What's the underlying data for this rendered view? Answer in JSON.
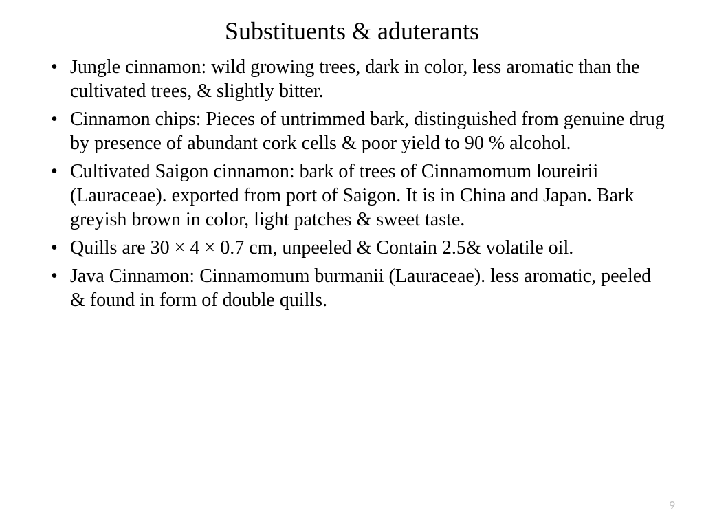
{
  "slide": {
    "title": "Substituents & aduterants",
    "bullets": [
      "Jungle cinnamon: wild growing trees, dark in color, less aromatic than the cultivated trees, & slightly bitter.",
      "Cinnamon chips: Pieces of untrimmed bark, distinguished from genuine  drug by presence of abundant cork cells & poor yield to 90 % alcohol.",
      "Cultivated Saigon cinnamon: bark of trees of Cinnamomum loureirii  (Lauraceae). exported from port of Saigon. It is in China and Japan. Bark greyish brown in color, light patches & sweet taste.",
      "Quills are 30 × 4 × 0.7 cm, unpeeled & Contain 2.5& volatile oil.",
      "Java Cinnamon: Cinnamomum burmanii (Lauraceae). less aromatic,  peeled & found in form of double quills."
    ],
    "page_number": "9"
  },
  "styling": {
    "background_color": "#ffffff",
    "text_color": "#000000",
    "page_number_color": "#bfbfbf",
    "title_fontsize": 36,
    "body_fontsize": 28,
    "font_family": "Times New Roman"
  }
}
